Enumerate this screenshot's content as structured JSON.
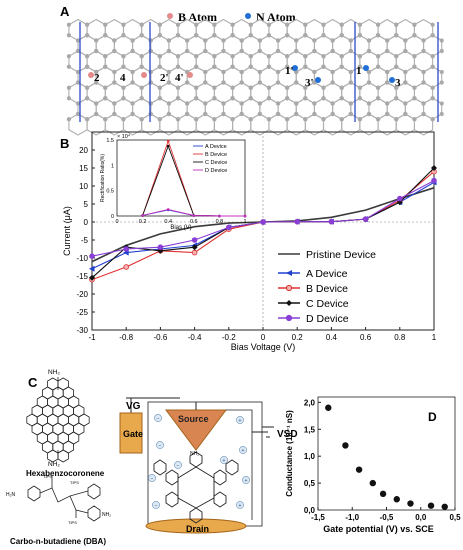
{
  "panel_a": {
    "label": "A",
    "legend_b": "B Atom",
    "legend_n": "N Atom",
    "site_labels": [
      "2",
      "4",
      "2'",
      "4'",
      "1'",
      "3'",
      "1",
      "3"
    ],
    "colors": {
      "b_atom": "#e58a8a",
      "n_atom": "#1f6fd6",
      "carbon": "#a9a9a9",
      "divider": "#2b47c8"
    }
  },
  "chart_data": [
    {
      "type": "line",
      "panel": "B",
      "xlabel": "Bias Voltage (V)",
      "ylabel": "Current (μA)",
      "xlim": [
        -1,
        1
      ],
      "ylim": [
        -30,
        25
      ],
      "x_ticks": [
        "-1",
        "-0.8",
        "-0.6",
        "-0.4",
        "-0.2",
        "0",
        "0.2",
        "0.4",
        "0.6",
        "0.8",
        "1"
      ],
      "y_ticks": [
        "-30",
        "-25",
        "-20",
        "-15",
        "-10",
        "-5",
        "0",
        "5",
        "10",
        "15",
        "20"
      ],
      "legend_placement": "bottom-right",
      "series": [
        {
          "name": "Pristine Device",
          "color": "#3a3a3a",
          "marker": "none",
          "x": [
            -1,
            -0.8,
            -0.6,
            -0.4,
            -0.2,
            0,
            0.2,
            0.4,
            0.6,
            0.8,
            1
          ],
          "y": [
            -11,
            -6.5,
            -3.3,
            -1.3,
            -0.3,
            0,
            0.3,
            1.3,
            3.3,
            6.5,
            9.5
          ]
        },
        {
          "name": "A Device",
          "color": "#2040d0",
          "marker": "triangle-left",
          "x": [
            -1,
            -0.8,
            -0.6,
            -0.4,
            -0.2,
            0,
            0.2,
            0.4,
            0.6,
            0.8,
            1
          ],
          "y": [
            -13,
            -8.5,
            -7.5,
            -6.5,
            -1.5,
            0,
            0.1,
            0.1,
            0.8,
            5.5,
            11
          ]
        },
        {
          "name": "B Device",
          "color": "#e03030",
          "marker": "circle",
          "x": [
            -1,
            -0.8,
            -0.6,
            -0.4,
            -0.2,
            0,
            0.2,
            0.4,
            0.6,
            0.8,
            1
          ],
          "y": [
            -16,
            -12.5,
            -8,
            -8.5,
            -2,
            0,
            0.1,
            0.1,
            0.8,
            6,
            14
          ]
        },
        {
          "name": "C Device",
          "color": "#111111",
          "marker": "diamond",
          "x": [
            -1,
            -0.8,
            -0.6,
            -0.4,
            -0.2,
            0,
            0.2,
            0.4,
            0.6,
            0.8,
            1
          ],
          "y": [
            -15.5,
            -7,
            -8,
            -7,
            -1.5,
            0,
            0.1,
            0.1,
            0.8,
            5.5,
            15
          ]
        },
        {
          "name": "D Device",
          "color": "#8a3fd6",
          "marker": "circle",
          "x": [
            -1,
            -0.8,
            -0.6,
            -0.4,
            -0.2,
            0,
            0.2,
            0.4,
            0.6,
            0.8,
            1
          ],
          "y": [
            -9.5,
            -7.5,
            -7,
            -5,
            -1.5,
            0,
            0.1,
            0.1,
            0.8,
            6.5,
            11.5
          ]
        }
      ]
    },
    {
      "type": "line",
      "panel": "B-inset",
      "xlabel": "Bias (V)",
      "ylabel": "Rectification Ratio(%)",
      "y_multiplier": "× 10⁴",
      "xlim": [
        0,
        1
      ],
      "ylim": [
        0,
        1.5
      ],
      "x_ticks": [
        "0",
        "0.2",
        "0.4",
        "0.6",
        "0.8",
        "1"
      ],
      "y_ticks": [
        "0",
        "0.5",
        "1",
        "1.5"
      ],
      "legend_placement": "top-right",
      "series": [
        {
          "name": "A Device",
          "color": "#2040d0",
          "x": [
            0.2,
            0.4,
            0.6,
            0.8,
            1
          ],
          "y": [
            0.01,
            0.12,
            0.01,
            0,
            0
          ]
        },
        {
          "name": "B Device",
          "color": "#e03030",
          "x": [
            0.2,
            0.4,
            0.6,
            0.8,
            1
          ],
          "y": [
            0.01,
            1.48,
            0.01,
            0,
            0
          ]
        },
        {
          "name": "C Device",
          "color": "#111111",
          "x": [
            0.2,
            0.4,
            0.6,
            0.8,
            1
          ],
          "y": [
            0.01,
            1.38,
            0.01,
            0,
            0
          ]
        },
        {
          "name": "D Device",
          "color": "#c030c0",
          "x": [
            0.2,
            0.4,
            0.6,
            0.8,
            1
          ],
          "y": [
            0.01,
            0.13,
            0.01,
            0,
            0
          ]
        }
      ]
    },
    {
      "type": "scatter",
      "panel": "D",
      "label": "D",
      "xlabel": "Gate potential (V) vs. SCE",
      "ylabel": "Conductance (10⁻¹ nS)",
      "xlim": [
        -1.5,
        0.5
      ],
      "ylim": [
        0,
        2.1
      ],
      "x_ticks": [
        "-1,5",
        "-1,0",
        "-0,5",
        "0,0",
        "0,5"
      ],
      "y_ticks": [
        "0,0",
        "0,5",
        "1,0",
        "1,5",
        "2,0"
      ],
      "series": [
        {
          "name": "",
          "color": "#111111",
          "x": [
            -1.35,
            -1.1,
            -0.9,
            -0.7,
            -0.55,
            -0.35,
            -0.15,
            0.15,
            0.35
          ],
          "y": [
            1.9,
            1.2,
            0.75,
            0.5,
            0.3,
            0.2,
            0.12,
            0.08,
            0.06
          ]
        }
      ]
    }
  ],
  "panel_c": {
    "label": "C",
    "hbc_name": "Hexabenzocoronene",
    "dba_name": "Carbo-n-butadiene (DBA)",
    "nh2": "NH₂",
    "tips": "TIPS",
    "vg": "VG",
    "vsd": "VSD",
    "gate": "Gate",
    "source": "Source",
    "drain": "Drain",
    "h2n": "H₂N"
  }
}
